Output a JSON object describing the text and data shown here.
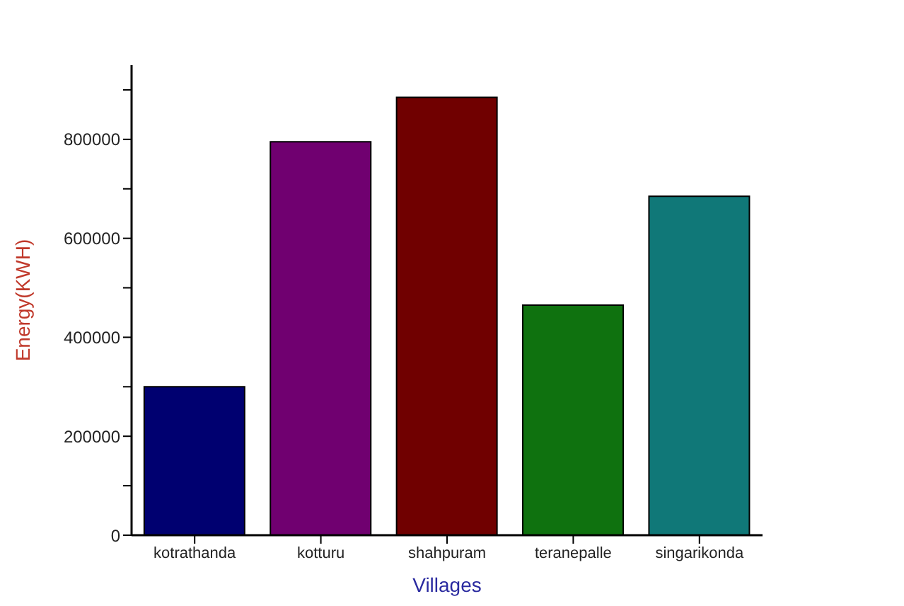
{
  "chart_data": {
    "type": "bar",
    "xlabel": "Villages",
    "ylabel": "Energy(KWH)",
    "categories": [
      "kotrathanda",
      "kotturu",
      "shahpuram",
      "teranepalle",
      "singarikonda"
    ],
    "values": [
      300000,
      795000,
      885000,
      465000,
      685000
    ],
    "colors": [
      "#000070",
      "#700070",
      "#700000",
      "#0f720f",
      "#107878"
    ],
    "ylim": [
      0,
      950000
    ],
    "yticks": [
      0,
      {
        "value": 100000,
        "label": null
      },
      200000,
      {
        "value": 300000,
        "label": null
      },
      400000,
      {
        "value": 500000,
        "label": null
      },
      600000,
      {
        "value": 700000,
        "label": null
      },
      800000,
      {
        "value": 900000,
        "label": null
      }
    ],
    "grid": false
  }
}
